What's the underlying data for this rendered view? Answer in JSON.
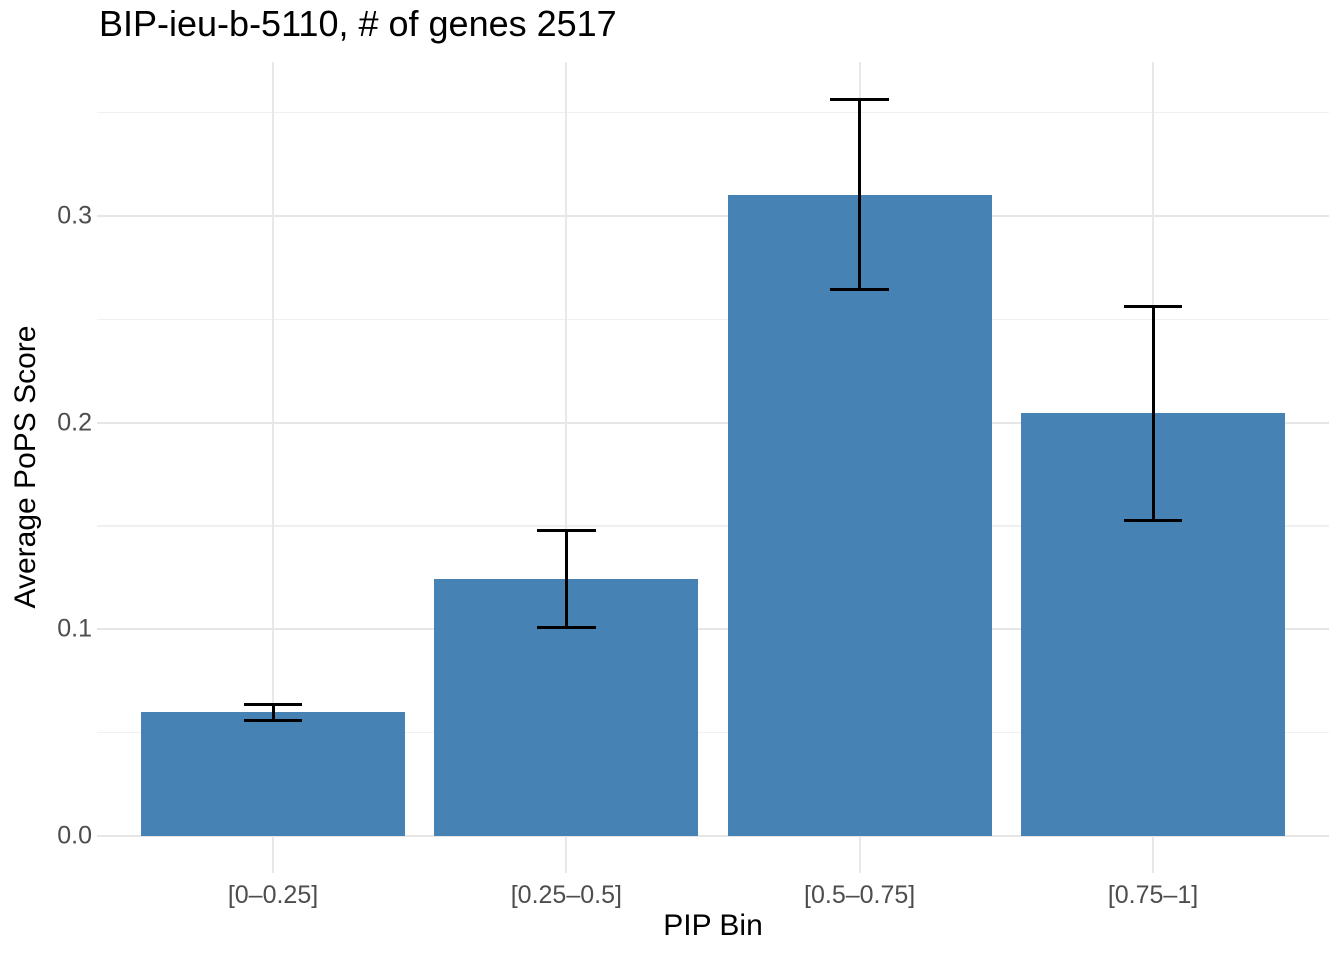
{
  "header": {
    "title": "BIP-ieu-b-5110, # of genes 2517"
  },
  "chart_data": {
    "type": "bar",
    "title": "BIP-ieu-b-5110, # of genes 2517",
    "xlabel": "PIP Bin",
    "ylabel": "Average PoPS Score",
    "categories": [
      "[0–0.25]",
      "[0.25–0.5]",
      "[0.5–0.75]",
      "[0.75–1]"
    ],
    "values": [
      0.06,
      0.1245,
      0.31,
      0.2045
    ],
    "error_low": [
      0.056,
      0.101,
      0.2645,
      0.1525
    ],
    "error_high": [
      0.0635,
      0.148,
      0.3565,
      0.256
    ],
    "y_major_ticks": [
      0,
      0.1,
      0.2,
      0.3
    ],
    "y_tick_labels": [
      "0.0",
      "0.1",
      "0.2",
      "0.3"
    ],
    "y_minor_ticks": [
      0.05,
      0.15,
      0.25,
      0.35
    ],
    "ylim": [
      -0.0179,
      0.3745
    ],
    "bar_width_fraction": 0.9,
    "errorbar_cap_width_fraction": 0.2,
    "grid": "horizontal major+minor, vertical major at category centers",
    "legend": "none",
    "colors": {
      "bar": "#4682b4",
      "errorbar": "#000000",
      "grid_major": "#e6e6e6",
      "grid_minor": "#f0f0f0",
      "axis_text": "#4d4d4d",
      "title_text": "#000000",
      "background": "#ffffff"
    }
  }
}
